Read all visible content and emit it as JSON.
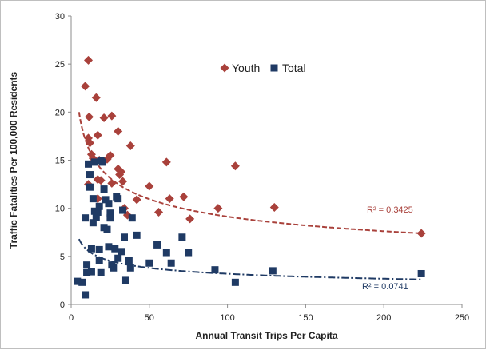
{
  "chart_data": {
    "type": "scatter",
    "title": "",
    "xlabel": "Annual Transit Trips Per Capita",
    "ylabel": "Traffic Fatalities Per 100,000 Residents",
    "xlim": [
      0,
      250
    ],
    "ylim": [
      0,
      30
    ],
    "x_ticks": [
      "0",
      "50",
      "100",
      "150",
      "200",
      "250"
    ],
    "y_ticks": [
      "0",
      "5",
      "10",
      "15",
      "20",
      "25",
      "30"
    ],
    "grid": false,
    "legend_position": "top-center",
    "series": [
      {
        "name": "Youth",
        "marker": "diamond",
        "color": "#a9413b",
        "points": [
          [
            9,
            22.7
          ],
          [
            11,
            25.4
          ],
          [
            11,
            17.3
          ],
          [
            11.5,
            19.5
          ],
          [
            12,
            16.8
          ],
          [
            11,
            12.5
          ],
          [
            13,
            15.6
          ],
          [
            14,
            15.2
          ],
          [
            16,
            21.5
          ],
          [
            17,
            17.6
          ],
          [
            17,
            13
          ],
          [
            17,
            11
          ],
          [
            18,
            15
          ],
          [
            19,
            12.9
          ],
          [
            21,
            19.4
          ],
          [
            23,
            15.1
          ],
          [
            25,
            15.5
          ],
          [
            26,
            19.6
          ],
          [
            26,
            12.6
          ],
          [
            30,
            18
          ],
          [
            30,
            14.1
          ],
          [
            31,
            13.5
          ],
          [
            32,
            13.8
          ],
          [
            33,
            12.8
          ],
          [
            34,
            10
          ],
          [
            36,
            9.3
          ],
          [
            38,
            16.5
          ],
          [
            42,
            10.9
          ],
          [
            50,
            12.3
          ],
          [
            56,
            9.6
          ],
          [
            61,
            14.8
          ],
          [
            63,
            11
          ],
          [
            72,
            11.2
          ],
          [
            76,
            8.9
          ],
          [
            94,
            10
          ],
          [
            105,
            14.4
          ],
          [
            130,
            10.1
          ],
          [
            224,
            7.4
          ]
        ],
        "trendline": {
          "type": "power",
          "r_squared_label": "R² = 0.3425",
          "y_at": [
            [
              5,
              20
            ],
            [
              224,
              7.4
            ]
          ]
        }
      },
      {
        "name": "Total",
        "marker": "square",
        "color": "#1f3a64",
        "points": [
          [
            4,
            2.4
          ],
          [
            7,
            2.3
          ],
          [
            9,
            9
          ],
          [
            9,
            1
          ],
          [
            10,
            4.1
          ],
          [
            10,
            3.3
          ],
          [
            11,
            14.6
          ],
          [
            12,
            13.5
          ],
          [
            12,
            12.2
          ],
          [
            13,
            5.8
          ],
          [
            13,
            3.4
          ],
          [
            14,
            11
          ],
          [
            14,
            8.5
          ],
          [
            15,
            14.8
          ],
          [
            15,
            9.7
          ],
          [
            16,
            9.1
          ],
          [
            17,
            9.6
          ],
          [
            18,
            10.2
          ],
          [
            18,
            5.7
          ],
          [
            18,
            4.6
          ],
          [
            19,
            3.3
          ],
          [
            19,
            15
          ],
          [
            20,
            14.8
          ],
          [
            21,
            12
          ],
          [
            21,
            8
          ],
          [
            22,
            10.9
          ],
          [
            23,
            7.8
          ],
          [
            24,
            10.5
          ],
          [
            24,
            6
          ],
          [
            25,
            9.5
          ],
          [
            25,
            9
          ],
          [
            26,
            4.1
          ],
          [
            27,
            3.8
          ],
          [
            28,
            5.8
          ],
          [
            29,
            11.2
          ],
          [
            30,
            11
          ],
          [
            30,
            4.8
          ],
          [
            32,
            5.5
          ],
          [
            33,
            9.8
          ],
          [
            34,
            7
          ],
          [
            35,
            2.5
          ],
          [
            37,
            4.6
          ],
          [
            38,
            3.8
          ],
          [
            39,
            9
          ],
          [
            42,
            7.2
          ],
          [
            50,
            4.3
          ],
          [
            55,
            6.2
          ],
          [
            61,
            5.4
          ],
          [
            64,
            4.3
          ],
          [
            71,
            7
          ],
          [
            75,
            5.4
          ],
          [
            92,
            3.6
          ],
          [
            105,
            2.3
          ],
          [
            129,
            3.5
          ],
          [
            224,
            3.2
          ]
        ],
        "trendline": {
          "type": "power",
          "r_squared_label": "R² = 0.0741",
          "y_at": [
            [
              5,
              6.8
            ],
            [
              224,
              2.6
            ]
          ]
        }
      }
    ]
  }
}
